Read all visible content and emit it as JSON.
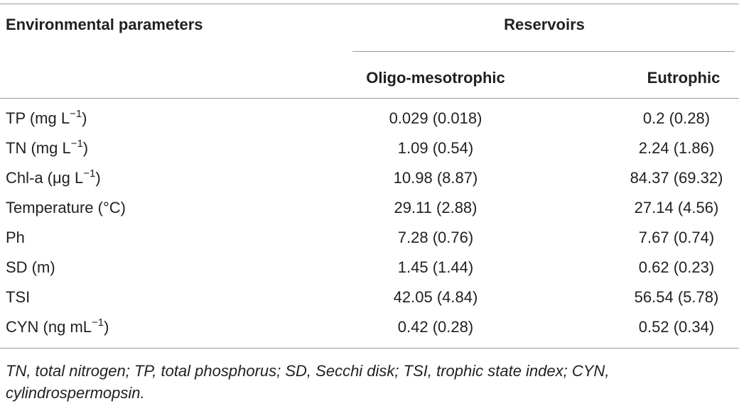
{
  "table": {
    "header": {
      "parameter": "Environmental parameters",
      "group": "Reservoirs",
      "columns": [
        "Oligo-mesotrophic",
        "Eutrophic"
      ]
    },
    "rows": [
      [
        {
          "base": "TP (mg L",
          "sup": "−1",
          "tail": ")"
        },
        "0.029 (0.018)",
        "0.2 (0.28)"
      ],
      [
        {
          "base": "TN (mg L",
          "sup": "−1",
          "tail": ")"
        },
        "1.09 (0.54)",
        "2.24 (1.86)"
      ],
      [
        {
          "base": "Chl-a (μg L",
          "sup": "−1",
          "tail": ")"
        },
        "10.98 (8.87)",
        "84.37 (69.32)"
      ],
      [
        "Temperature (°C)",
        "29.11 (2.88)",
        "27.14 (4.56)"
      ],
      [
        "Ph",
        "7.28 (0.76)",
        "7.67 (0.74)"
      ],
      [
        "SD (m)",
        "1.45 (1.44)",
        "0.62 (0.23)"
      ],
      [
        "TSI",
        "42.05 (4.84)",
        "56.54 (5.78)"
      ],
      [
        {
          "base": "CYN (ng mL",
          "sup": "−1",
          "tail": ")"
        },
        "0.42 (0.28)",
        "0.52 (0.34)"
      ]
    ],
    "footnote": "TN, total nitrogen; TP, total phosphorus; SD, Secchi disk; TSI, trophic state index; CYN, cylindrospermopsin."
  }
}
